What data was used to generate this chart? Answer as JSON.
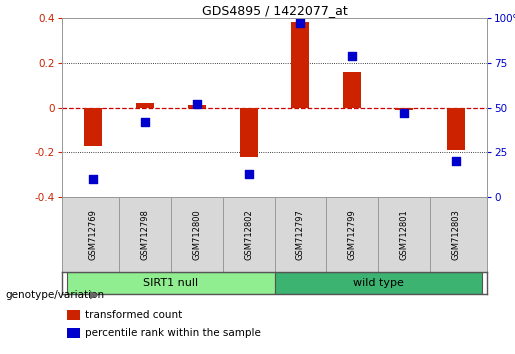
{
  "title": "GDS4895 / 1422077_at",
  "samples": [
    "GSM712769",
    "GSM712798",
    "GSM712800",
    "GSM712802",
    "GSM712797",
    "GSM712799",
    "GSM712801",
    "GSM712803"
  ],
  "red_values": [
    -0.17,
    0.02,
    0.01,
    -0.22,
    0.38,
    0.16,
    -0.01,
    -0.19
  ],
  "blue_values": [
    10,
    42,
    52,
    13,
    97,
    79,
    47,
    20
  ],
  "groups": [
    {
      "label": "SIRT1 null",
      "indices": [
        0,
        1,
        2,
        3
      ],
      "color": "#90ee90"
    },
    {
      "label": "wild type",
      "indices": [
        4,
        5,
        6,
        7
      ],
      "color": "#3cb371"
    }
  ],
  "ylim": [
    -0.4,
    0.4
  ],
  "y2lim": [
    0,
    100
  ],
  "yticks": [
    -0.4,
    -0.2,
    0.0,
    0.2,
    0.4
  ],
  "y2ticks": [
    0,
    25,
    50,
    75,
    100
  ],
  "bar_color": "#cc2200",
  "dot_color": "#0000cc",
  "hline_color": "#cc0000",
  "grid_color": "#000000",
  "bar_width": 0.35,
  "dot_size": 28,
  "legend_red": "transformed count",
  "legend_blue": "percentile rank within the sample",
  "genotype_label": "genotype/variation"
}
